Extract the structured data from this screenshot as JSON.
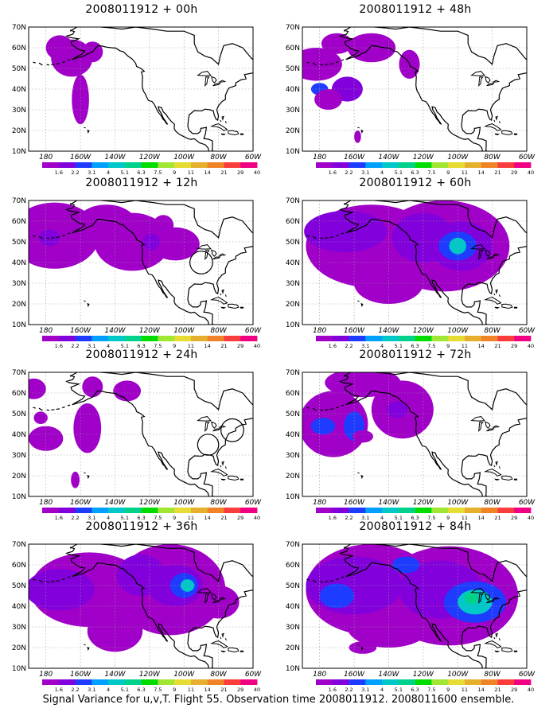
{
  "panels": [
    {
      "title": "2008011912 + 00h",
      "hour": 0
    },
    {
      "title": "2008011912 + 48h",
      "hour": 48
    },
    {
      "title": "2008011912 + 12h",
      "hour": 12
    },
    {
      "title": "2008011912 + 60h",
      "hour": 60
    },
    {
      "title": "2008011912 + 24h",
      "hour": 24
    },
    {
      "title": "2008011912 + 72h",
      "hour": 72
    },
    {
      "title": "2008011912 + 36h",
      "hour": 36
    },
    {
      "title": "2008011912 + 84h",
      "hour": 84
    }
  ],
  "lat_labels": [
    "70N",
    "60N",
    "50N",
    "40N",
    "30N",
    "20N",
    "10N"
  ],
  "lon_labels": [
    "180",
    "160W",
    "140W",
    "120W",
    "100W",
    "80W",
    "60W"
  ],
  "colorbar": {
    "labels": [
      "1.6",
      "2.2",
      "3.1",
      "4",
      "5.1",
      "6.3",
      "7.5",
      "9",
      "11",
      "14",
      "21",
      "29",
      "40"
    ],
    "colors": [
      "#a000c8",
      "#8200dc",
      "#1e3cff",
      "#00a0ff",
      "#00c8c8",
      "#00d28c",
      "#00dc00",
      "#a0e632",
      "#e6dc32",
      "#e6af2d",
      "#f08228",
      "#fa3c3c",
      "#f00082"
    ]
  },
  "caption": "Signal Variance for u,v,T. Flight 55. Observation time 2008011912. 2008011600 ensemble."
}
